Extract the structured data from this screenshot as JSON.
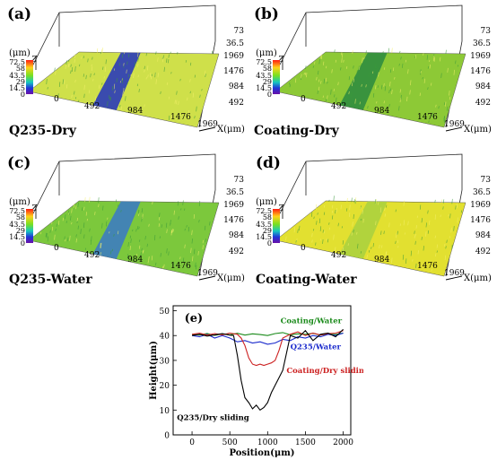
{
  "panels": [
    {
      "id": "a",
      "label": "(a)",
      "caption": "Q235-Dry",
      "unit": "(μm)",
      "z_label": "Z",
      "colorbar_ticks": [
        "72.5",
        "58",
        "43.5",
        "29",
        "14.5",
        "0"
      ],
      "right_ticks": [
        "73",
        "36.5",
        "1969",
        "1476",
        "984",
        "492"
      ],
      "bottom_ticks": [
        "0",
        "492",
        "984",
        "1476",
        "1969"
      ],
      "x_axis_label": "X(μm)",
      "surface_color": "#cfe04a",
      "groove_color": "#2030c0"
    },
    {
      "id": "b",
      "label": "(b)",
      "caption": "Coating-Dry",
      "unit": "(μm)",
      "z_label": "Z",
      "colorbar_ticks": [
        "72.5",
        "58",
        "43.5",
        "29",
        "14.5",
        "0"
      ],
      "right_ticks": [
        "73",
        "36.5",
        "1969",
        "1476",
        "984",
        "492"
      ],
      "bottom_ticks": [
        "0",
        "492",
        "984",
        "1476",
        "1969"
      ],
      "x_axis_label": "X(μm)",
      "surface_color": "#8dc936",
      "groove_color": "#2a8a40"
    },
    {
      "id": "c",
      "label": "(c)",
      "caption": "Q235-Water",
      "unit": "(μm)",
      "z_label": "Z",
      "colorbar_ticks": [
        "72.5",
        "58",
        "43.5",
        "29",
        "14.5",
        "0"
      ],
      "right_ticks": [
        "73",
        "36.5",
        "1969",
        "1476",
        "984",
        "492"
      ],
      "bottom_ticks": [
        "0",
        "492",
        "984",
        "1476",
        "1969"
      ],
      "x_axis_label": "X(μm)",
      "surface_color": "#7cc83c",
      "groove_color": "#3a78c8"
    },
    {
      "id": "d",
      "label": "(d)",
      "caption": "Coating-Water",
      "unit": "(μm)",
      "z_label": "Z",
      "colorbar_ticks": [
        "72.5",
        "58",
        "43.5",
        "29",
        "14.5",
        "0"
      ],
      "right_ticks": [
        "73",
        "36.5",
        "1969",
        "1476",
        "984",
        "492"
      ],
      "bottom_ticks": [
        "0",
        "492",
        "984",
        "1476",
        "1969"
      ],
      "x_axis_label": "X(μm)",
      "surface_color": "#e2e030",
      "groove_color": "#a8d040"
    }
  ],
  "chart_data": {
    "type": "line",
    "panel_label": "(e)",
    "xlabel": "Position(μm)",
    "ylabel": "Height(μm)",
    "xlim": [
      -250,
      2100
    ],
    "ylim": [
      0,
      52
    ],
    "xticks": [
      0,
      500,
      1000,
      1500,
      2000
    ],
    "yticks": [
      0,
      10,
      20,
      30,
      40,
      50
    ],
    "series": [
      {
        "name": "Coating/Water",
        "color": "#1a8a1a",
        "x": [
          0,
          100,
          200,
          300,
          400,
          500,
          600,
          700,
          800,
          900,
          1000,
          1100,
          1200,
          1300,
          1400,
          1500,
          1600,
          1700,
          1800,
          1900,
          2000
        ],
        "y": [
          40.5,
          40.2,
          40.8,
          40.1,
          40.6,
          40.3,
          40.9,
          40.2,
          40.7,
          40.4,
          40.0,
          40.8,
          41.2,
          40.3,
          40.7,
          40.5,
          40.9,
          40.2,
          40.6,
          40.4,
          41.0
        ]
      },
      {
        "name": "Q235/Water",
        "color": "#1a2acc",
        "x": [
          0,
          100,
          200,
          300,
          400,
          500,
          600,
          700,
          800,
          900,
          1000,
          1100,
          1200,
          1300,
          1400,
          1500,
          1600,
          1700,
          1800,
          1900,
          2000
        ],
        "y": [
          40.0,
          39.5,
          40.5,
          39.0,
          40.0,
          39.0,
          37.5,
          38.0,
          37.0,
          37.5,
          36.5,
          37.0,
          38.5,
          38.0,
          39.5,
          39.0,
          40.0,
          39.5,
          40.5,
          40.0,
          41.0
        ]
      },
      {
        "name": "Coating/Dry sliding",
        "color": "#cc2020",
        "x": [
          0,
          100,
          200,
          300,
          400,
          500,
          600,
          650,
          700,
          750,
          800,
          850,
          900,
          950,
          1000,
          1050,
          1100,
          1150,
          1200,
          1300,
          1400,
          1500,
          1600,
          1700,
          1800,
          1900,
          2000
        ],
        "y": [
          40.5,
          41.0,
          40.2,
          40.8,
          40.3,
          41.0,
          40.5,
          39.0,
          36.0,
          31.0,
          28.5,
          28.0,
          28.5,
          28.0,
          28.5,
          29.0,
          30.0,
          34.0,
          39.0,
          40.5,
          41.5,
          40.0,
          41.0,
          40.2,
          40.8,
          41.0,
          42.0
        ]
      },
      {
        "name": "Q235/Dry sliding",
        "color": "#000000",
        "x": [
          0,
          100,
          200,
          300,
          400,
          500,
          550,
          600,
          650,
          700,
          750,
          800,
          850,
          900,
          950,
          1000,
          1050,
          1100,
          1150,
          1200,
          1250,
          1300,
          1400,
          1500,
          1600,
          1700,
          1800,
          1900,
          2000
        ],
        "y": [
          40.0,
          40.5,
          39.8,
          40.3,
          40.8,
          40.2,
          40.0,
          32.0,
          22.0,
          15.0,
          13.0,
          10.5,
          12.0,
          10.0,
          11.0,
          13.0,
          17.0,
          20.0,
          23.0,
          26.0,
          33.0,
          40.0,
          39.0,
          42.0,
          38.0,
          40.5,
          41.0,
          39.5,
          42.5
        ]
      }
    ],
    "annotations": [
      {
        "text": "Coating/Water",
        "color": "#1a8a1a",
        "x": 1170,
        "y": 45
      },
      {
        "text": "Q235/Water",
        "color": "#1a2acc",
        "x": 1300,
        "y": 34.5
      },
      {
        "text": "Coating/Dry sliding",
        "color": "#cc2020",
        "x": 1250,
        "y": 25
      },
      {
        "text": "Q235/Dry sliding",
        "color": "#000000",
        "x": -200,
        "y": 6
      }
    ]
  }
}
